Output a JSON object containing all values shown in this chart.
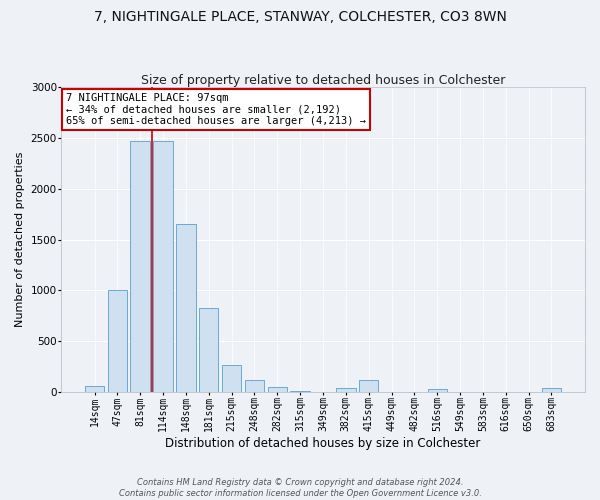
{
  "title": "7, NIGHTINGALE PLACE, STANWAY, COLCHESTER, CO3 8WN",
  "subtitle": "Size of property relative to detached houses in Colchester",
  "xlabel": "Distribution of detached houses by size in Colchester",
  "ylabel": "Number of detached properties",
  "bar_labels": [
    "14sqm",
    "47sqm",
    "81sqm",
    "114sqm",
    "148sqm",
    "181sqm",
    "215sqm",
    "248sqm",
    "282sqm",
    "315sqm",
    "349sqm",
    "382sqm",
    "415sqm",
    "449sqm",
    "482sqm",
    "516sqm",
    "549sqm",
    "583sqm",
    "616sqm",
    "650sqm",
    "683sqm"
  ],
  "bar_values": [
    55,
    1000,
    2470,
    2470,
    1650,
    830,
    270,
    120,
    45,
    10,
    0,
    35,
    120,
    0,
    0,
    25,
    0,
    0,
    0,
    0,
    40
  ],
  "bar_color": "#cfe0f0",
  "bar_edge_color": "#6aaad4",
  "vline_color": "#cc0000",
  "vline_pos": 2.5,
  "annotation_title": "7 NIGHTINGALE PLACE: 97sqm",
  "annotation_line1": "← 34% of detached houses are smaller (2,192)",
  "annotation_line2": "65% of semi-detached houses are larger (4,213) →",
  "annotation_box_facecolor": "#ffffff",
  "annotation_box_edgecolor": "#cc0000",
  "footer1": "Contains HM Land Registry data © Crown copyright and database right 2024.",
  "footer2": "Contains public sector information licensed under the Open Government Licence v3.0.",
  "ylim": [
    0,
    3000
  ],
  "yticks": [
    0,
    500,
    1000,
    1500,
    2000,
    2500,
    3000
  ],
  "background_color": "#eef2f7",
  "grid_color": "#ffffff",
  "title_fontsize": 10,
  "subtitle_fontsize": 9,
  "xlabel_fontsize": 8.5,
  "ylabel_fontsize": 8,
  "tick_fontsize": 7,
  "annotation_fontsize": 7.5,
  "footer_fontsize": 6
}
